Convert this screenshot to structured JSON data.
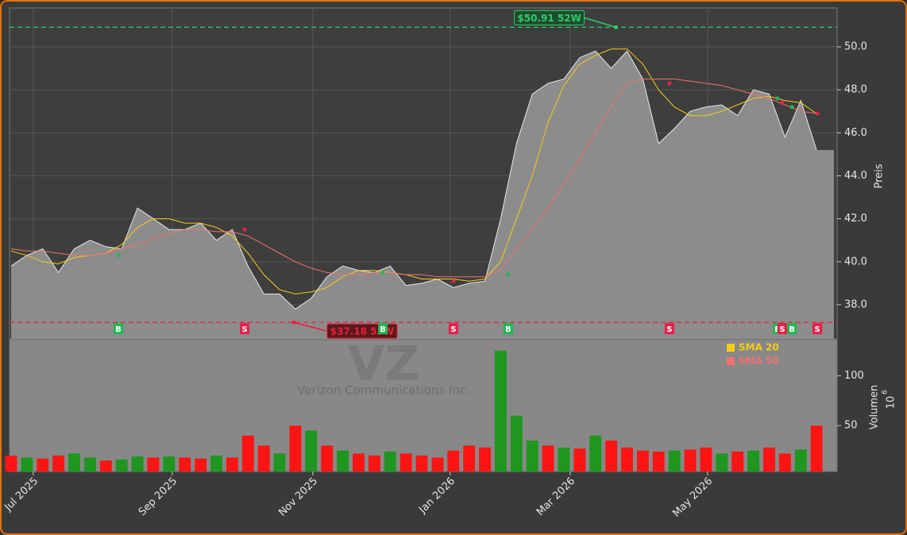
{
  "chart_data": {
    "type": "area",
    "x": [
      0,
      1,
      2,
      3,
      4,
      5,
      6,
      7,
      8,
      9,
      10,
      11,
      12,
      13,
      14,
      15,
      16,
      17,
      18,
      19,
      20,
      21,
      22,
      23,
      24,
      25,
      26,
      27,
      28,
      29,
      30,
      31,
      32,
      33,
      34,
      35,
      36,
      37,
      38,
      39,
      40,
      41,
      42,
      43,
      44,
      45,
      46,
      47,
      48,
      49,
      50,
      51
    ],
    "close": [
      39.8,
      40.3,
      40.6,
      39.5,
      40.6,
      41.0,
      40.7,
      40.6,
      42.5,
      42.0,
      41.5,
      41.5,
      41.8,
      41.0,
      41.5,
      39.8,
      38.5,
      38.5,
      37.8,
      38.3,
      39.3,
      39.8,
      39.6,
      39.5,
      39.8,
      38.9,
      39.0,
      39.2,
      38.8,
      39.0,
      39.1,
      42.0,
      45.5,
      47.8,
      48.3,
      48.5,
      49.5,
      49.8,
      49.0,
      49.8,
      48.5,
      45.5,
      46.2,
      47.0,
      47.2,
      47.3,
      46.8,
      48.0,
      47.8,
      45.8,
      47.5,
      45.2
    ],
    "area_color": "#8c8c8c",
    "series": [
      {
        "name": "SMA 20",
        "color": "#f5cc18",
        "values": [
          40.5,
          40.3,
          40.0,
          39.9,
          40.2,
          40.3,
          40.4,
          40.8,
          41.6,
          42.0,
          42.0,
          41.8,
          41.8,
          41.6,
          41.2,
          40.4,
          39.4,
          38.7,
          38.5,
          38.6,
          38.8,
          39.3,
          39.6,
          39.6,
          39.5,
          39.4,
          39.2,
          39.2,
          39.2,
          39.1,
          39.2,
          40.0,
          42.0,
          44.0,
          46.5,
          48.2,
          49.2,
          49.6,
          49.9,
          49.9,
          49.2,
          48.0,
          47.2,
          46.8,
          46.8,
          47.0,
          47.3,
          47.6,
          47.7,
          47.5,
          47.4,
          46.9
        ]
      },
      {
        "name": "SMA 50",
        "color": "#f07070",
        "values": [
          40.6,
          40.5,
          40.5,
          40.4,
          40.3,
          40.3,
          40.4,
          40.6,
          40.8,
          41.1,
          41.3,
          41.5,
          41.5,
          41.4,
          41.4,
          41.2,
          40.8,
          40.4,
          40.0,
          39.7,
          39.5,
          39.4,
          39.4,
          39.5,
          39.5,
          39.4,
          39.4,
          39.3,
          39.3,
          39.3,
          39.3,
          39.6,
          40.6,
          41.5,
          42.5,
          43.6,
          44.8,
          46.0,
          47.2,
          48.3,
          48.5,
          48.5,
          48.5,
          48.4,
          48.3,
          48.2,
          48.0,
          47.8,
          47.6,
          47.3,
          47.0,
          46.9
        ]
      }
    ],
    "xlim": [
      -0.1,
      52.3
    ],
    "xticks": [
      {
        "value": 1.4,
        "label": "Jul 2025"
      },
      {
        "value": 10.2,
        "label": "Sep 2025"
      },
      {
        "value": 19.1,
        "label": "Nov 2025"
      },
      {
        "value": 27.8,
        "label": "Jan 2026"
      },
      {
        "value": 35.4,
        "label": "Mar 2026"
      },
      {
        "value": 44.1,
        "label": "May 2026"
      }
    ],
    "ylim": [
      36.41,
      51.81
    ],
    "yticks": [
      {
        "value": 38,
        "label": "38.0"
      },
      {
        "value": 40,
        "label": "40.0"
      },
      {
        "value": 42,
        "label": "42.0"
      },
      {
        "value": 44,
        "label": "44.0"
      },
      {
        "value": 46,
        "label": "46.0"
      },
      {
        "value": 48,
        "label": "48.0"
      },
      {
        "value": 50,
        "label": "50.0"
      }
    ],
    "ylabel": "Preis",
    "grid": true,
    "high": {
      "label": "$50.91 52W",
      "value": 50.91,
      "x": 38.3,
      "color": "#2ecc71"
    },
    "low": {
      "label": "$37.18 52W",
      "value": 37.18,
      "x": 17.9,
      "color": "#e8203c"
    },
    "signals": [
      {
        "label": "B",
        "x": 6.79,
        "price": 40.3
      },
      {
        "label": "S",
        "x": 14.79,
        "price": 41.5
      },
      {
        "label": "B",
        "x": 23.54,
        "price": 39.5
      },
      {
        "label": "S",
        "x": 28.01,
        "price": 39.1
      },
      {
        "label": "B",
        "x": 31.48,
        "price": 39.4
      },
      {
        "label": "S",
        "x": 41.69,
        "price": 48.3
      },
      {
        "label": "B",
        "x": 48.53,
        "price": 47.6
      },
      {
        "label": "S",
        "x": 48.83,
        "price": 47.4
      },
      {
        "label": "B",
        "x": 49.44,
        "price": 47.2
      },
      {
        "label": "S",
        "x": 51.05,
        "price": 46.9
      }
    ],
    "signal_colors": {
      "B": "#1db954",
      "S": "#e8204a"
    },
    "watermark_ticker": "VZ",
    "watermark_name": "Verizon Communications Inc.",
    "volume": {
      "values": [
        20,
        18,
        17,
        20,
        22,
        18,
        15,
        16,
        19,
        18,
        19,
        18,
        17,
        20,
        18,
        40,
        30,
        22,
        50,
        45,
        30,
        25,
        22,
        20,
        24,
        22,
        20,
        18,
        25,
        30,
        28,
        125,
        60,
        35,
        30,
        28,
        27,
        40,
        35,
        28,
        25,
        24,
        25,
        26,
        28,
        22,
        24,
        25,
        28,
        22,
        26,
        50
      ],
      "colors": [
        "#ff1414",
        "#1f961f",
        "#ff1414",
        "#ff1414",
        "#1f961f",
        "#1f961f",
        "#ff1414",
        "#1f961f",
        "#1f961f",
        "#ff1414",
        "#1f961f",
        "#ff1414",
        "#ff1414",
        "#1f961f",
        "#ff1414",
        "#ff1414",
        "#ff1414",
        "#1f961f",
        "#ff1414",
        "#1f961f",
        "#ff1414",
        "#1f961f",
        "#ff1414",
        "#ff1414",
        "#1f961f",
        "#ff1414",
        "#ff1414",
        "#ff1414",
        "#ff1414",
        "#ff1414",
        "#ff1414",
        "#1f961f",
        "#1f961f",
        "#1f961f",
        "#ff1414",
        "#1f961f",
        "#ff1414",
        "#1f961f",
        "#ff1414",
        "#ff1414",
        "#ff1414",
        "#ff1414",
        "#1f961f",
        "#ff1414",
        "#ff1414",
        "#1f961f",
        "#ff1414",
        "#1f961f",
        "#ff1414",
        "#ff1414",
        "#1f961f",
        "#ff1414"
      ],
      "ylim": [
        4,
        136
      ],
      "yticks": [
        50,
        100
      ],
      "ylabel": "Volumen",
      "scale_base": "10",
      "scale_exp": "6"
    }
  }
}
